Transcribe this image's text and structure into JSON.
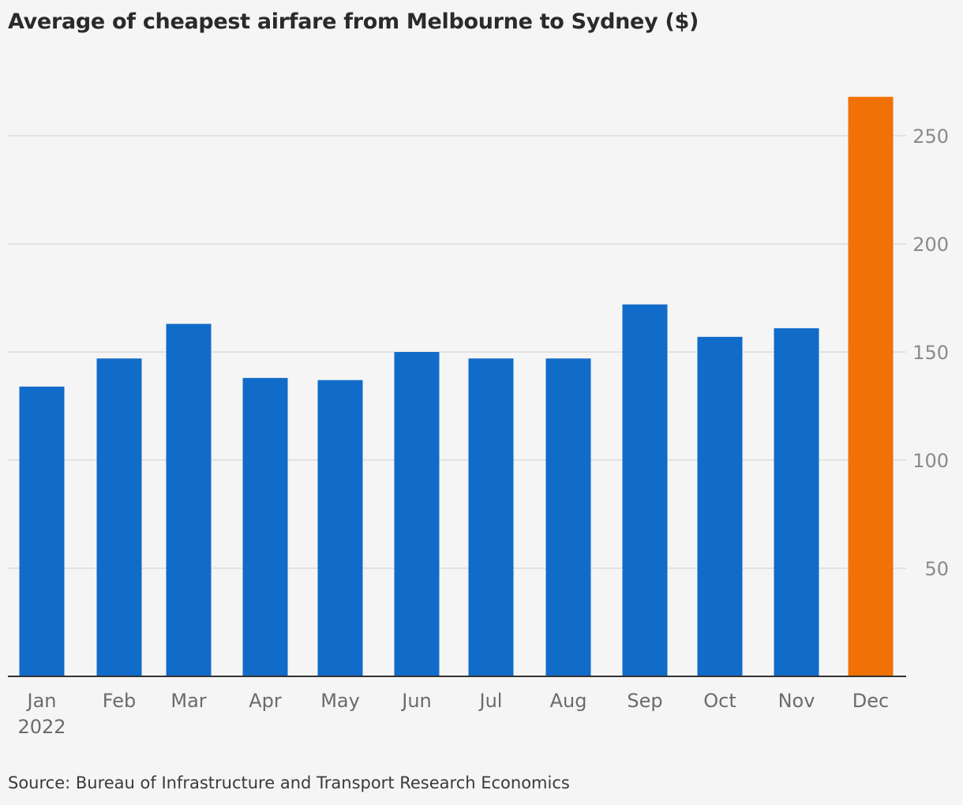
{
  "chart_data": {
    "type": "bar",
    "title": "Average of cheapest airfare from Melbourne to Sydney ($)",
    "categories": [
      "Jan",
      "Feb",
      "Mar",
      "Apr",
      "May",
      "Jun",
      "Jul",
      "Aug",
      "Sep",
      "Oct",
      "Nov",
      "Dec"
    ],
    "year_label": "2022",
    "values": [
      134,
      147,
      163,
      138,
      137,
      150,
      147,
      147,
      172,
      157,
      161,
      268
    ],
    "highlight_index": 11,
    "ylim": [
      0,
      270
    ],
    "yticks": [
      50,
      100,
      150,
      200,
      250
    ],
    "y_axis_side": "right",
    "grid": true,
    "colors": {
      "bar": "#116bc8",
      "highlight": "#f07106",
      "grid": "#dcdcdc",
      "axis": "#333333",
      "tick_label": "#8a8a8a",
      "category_label": "#6b6b6b"
    },
    "source": "Source: Bureau of Infrastructure and Transport Research Economics"
  }
}
